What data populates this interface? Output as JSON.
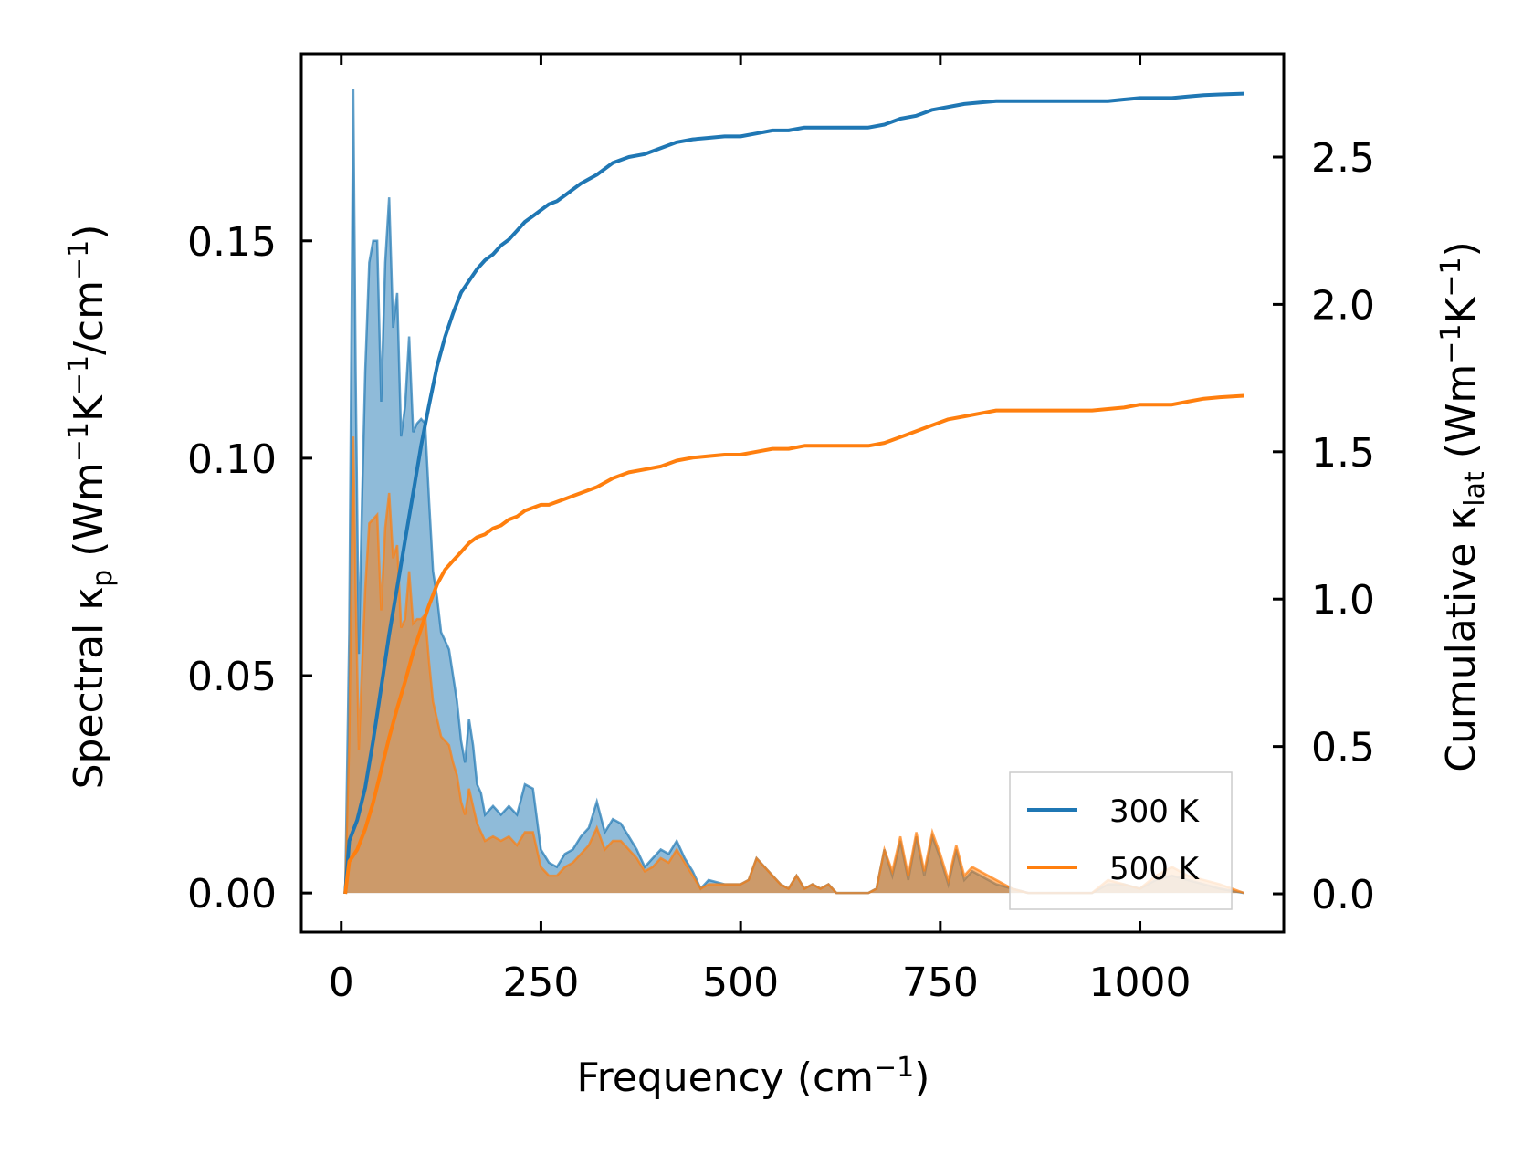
{
  "chart_data": {
    "type": "line",
    "x_axis": {
      "label_main": "Frequency (cm",
      "label_sup": "−1",
      "label_end": ")",
      "range": [
        -50,
        1180
      ],
      "ticks": [
        0,
        250,
        500,
        750,
        1000
      ],
      "tick_labels": [
        "0",
        "250",
        "500",
        "750",
        "1000"
      ]
    },
    "y_left": {
      "label_part1": "Spectral κ",
      "label_sub": "p",
      "label_part2": " (Wm",
      "label_sup1": "−1",
      "label_part3": "K",
      "label_sup2": "−1",
      "label_part4": "/cm",
      "label_sup3": "−1",
      "label_part5": ")",
      "range": [
        -0.009,
        0.193
      ],
      "ticks": [
        0.0,
        0.05,
        0.1,
        0.15
      ],
      "tick_labels": [
        "0.00",
        "0.05",
        "0.10",
        "0.15"
      ]
    },
    "y_right": {
      "label_part1": "Cumulative κ",
      "label_sub": "lat",
      "label_part2": " (Wm",
      "label_sup1": "−1",
      "label_part3": "K",
      "label_sup2": "−1",
      "label_part4": ")",
      "range": [
        -0.13,
        2.85
      ],
      "ticks": [
        0.0,
        0.5,
        1.0,
        1.5,
        2.0,
        2.5
      ],
      "tick_labels": [
        "0.0",
        "0.5",
        "1.0",
        "1.5",
        "2.0",
        "2.5"
      ]
    },
    "legend": {
      "position": "lower-right",
      "entries": [
        {
          "label": "300 K",
          "color": "#1f77b4"
        },
        {
          "label": "500 K",
          "color": "#ff7f0e"
        }
      ]
    },
    "series": [
      {
        "name": "300 K",
        "color": "#1f77b4",
        "spectral": {
          "x": [
            5,
            10,
            15,
            18,
            22,
            26,
            30,
            35,
            40,
            45,
            50,
            55,
            60,
            65,
            70,
            75,
            80,
            85,
            90,
            95,
            100,
            105,
            110,
            115,
            120,
            125,
            130,
            135,
            140,
            145,
            150,
            155,
            160,
            165,
            170,
            175,
            180,
            190,
            200,
            210,
            220,
            230,
            240,
            250,
            260,
            270,
            280,
            290,
            300,
            310,
            320,
            330,
            340,
            350,
            360,
            370,
            380,
            390,
            400,
            410,
            420,
            430,
            440,
            450,
            460,
            480,
            500,
            510,
            520,
            530,
            540,
            550,
            560,
            570,
            580,
            590,
            600,
            610,
            620,
            640,
            660,
            670,
            680,
            690,
            700,
            710,
            720,
            730,
            740,
            750,
            760,
            770,
            780,
            790,
            800,
            810,
            820,
            840,
            860,
            900,
            940,
            960,
            980,
            1000,
            1020,
            1040,
            1060,
            1080,
            1100,
            1130
          ],
          "values": [
            0.0,
            0.06,
            0.185,
            0.12,
            0.055,
            0.09,
            0.12,
            0.145,
            0.15,
            0.15,
            0.113,
            0.145,
            0.16,
            0.13,
            0.138,
            0.105,
            0.112,
            0.128,
            0.106,
            0.108,
            0.109,
            0.108,
            0.09,
            0.074,
            0.068,
            0.06,
            0.058,
            0.056,
            0.05,
            0.044,
            0.035,
            0.03,
            0.04,
            0.034,
            0.025,
            0.023,
            0.018,
            0.02,
            0.018,
            0.02,
            0.018,
            0.025,
            0.024,
            0.01,
            0.007,
            0.006,
            0.009,
            0.01,
            0.013,
            0.015,
            0.021,
            0.014,
            0.017,
            0.016,
            0.013,
            0.01,
            0.006,
            0.008,
            0.01,
            0.009,
            0.012,
            0.008,
            0.005,
            0.001,
            0.003,
            0.002,
            0.002,
            0.003,
            0.008,
            0.006,
            0.004,
            0.002,
            0.001,
            0.004,
            0.001,
            0.002,
            0.001,
            0.002,
            0.0,
            0.0,
            0.0,
            0.001,
            0.01,
            0.004,
            0.012,
            0.003,
            0.013,
            0.004,
            0.013,
            0.008,
            0.002,
            0.01,
            0.003,
            0.005,
            0.004,
            0.003,
            0.002,
            0.001,
            0.0,
            0.0,
            0.0,
            0.002,
            0.002,
            0.001,
            0.003,
            0.004,
            0.003,
            0.002,
            0.001,
            0.0
          ]
        },
        "cumulative": {
          "x": [
            5,
            10,
            20,
            30,
            40,
            50,
            60,
            70,
            80,
            90,
            100,
            110,
            120,
            130,
            140,
            150,
            160,
            170,
            180,
            190,
            200,
            210,
            220,
            230,
            240,
            250,
            260,
            270,
            280,
            290,
            300,
            320,
            340,
            360,
            380,
            400,
            420,
            440,
            460,
            480,
            500,
            520,
            540,
            560,
            580,
            600,
            620,
            640,
            660,
            680,
            700,
            720,
            740,
            760,
            780,
            800,
            820,
            840,
            860,
            880,
            900,
            920,
            940,
            960,
            980,
            1000,
            1020,
            1040,
            1060,
            1080,
            1100,
            1130
          ],
          "values": [
            0.0,
            0.18,
            0.25,
            0.36,
            0.52,
            0.7,
            0.88,
            1.04,
            1.2,
            1.36,
            1.52,
            1.66,
            1.79,
            1.89,
            1.97,
            2.04,
            2.08,
            2.12,
            2.15,
            2.17,
            2.2,
            2.22,
            2.25,
            2.28,
            2.3,
            2.32,
            2.34,
            2.35,
            2.37,
            2.39,
            2.41,
            2.44,
            2.48,
            2.5,
            2.51,
            2.53,
            2.55,
            2.56,
            2.565,
            2.57,
            2.57,
            2.58,
            2.59,
            2.59,
            2.6,
            2.6,
            2.6,
            2.6,
            2.6,
            2.61,
            2.63,
            2.64,
            2.66,
            2.67,
            2.68,
            2.685,
            2.69,
            2.69,
            2.69,
            2.69,
            2.69,
            2.69,
            2.69,
            2.69,
            2.695,
            2.7,
            2.7,
            2.7,
            2.705,
            2.71,
            2.712,
            2.715
          ]
        }
      },
      {
        "name": "500 K",
        "color": "#ff7f0e",
        "spectral": {
          "x": [
            5,
            10,
            15,
            18,
            22,
            26,
            30,
            35,
            40,
            45,
            50,
            55,
            60,
            65,
            70,
            75,
            80,
            85,
            90,
            95,
            100,
            105,
            110,
            115,
            120,
            125,
            130,
            135,
            140,
            145,
            150,
            155,
            160,
            165,
            170,
            175,
            180,
            190,
            200,
            210,
            220,
            230,
            240,
            250,
            260,
            270,
            280,
            290,
            300,
            310,
            320,
            330,
            340,
            350,
            360,
            370,
            380,
            390,
            400,
            410,
            420,
            430,
            440,
            450,
            460,
            480,
            500,
            510,
            520,
            530,
            540,
            550,
            560,
            570,
            580,
            590,
            600,
            610,
            620,
            640,
            660,
            670,
            680,
            690,
            700,
            710,
            720,
            730,
            740,
            750,
            760,
            770,
            780,
            790,
            800,
            810,
            820,
            840,
            860,
            900,
            940,
            960,
            980,
            1000,
            1020,
            1040,
            1060,
            1080,
            1100,
            1130
          ],
          "values": [
            0.0,
            0.035,
            0.105,
            0.07,
            0.033,
            0.052,
            0.07,
            0.085,
            0.086,
            0.087,
            0.065,
            0.084,
            0.092,
            0.077,
            0.08,
            0.061,
            0.063,
            0.074,
            0.062,
            0.063,
            0.063,
            0.064,
            0.053,
            0.044,
            0.04,
            0.036,
            0.035,
            0.034,
            0.03,
            0.027,
            0.021,
            0.018,
            0.024,
            0.02,
            0.016,
            0.014,
            0.012,
            0.013,
            0.012,
            0.013,
            0.011,
            0.014,
            0.014,
            0.006,
            0.004,
            0.004,
            0.006,
            0.007,
            0.009,
            0.011,
            0.015,
            0.01,
            0.012,
            0.012,
            0.01,
            0.008,
            0.005,
            0.006,
            0.008,
            0.007,
            0.01,
            0.007,
            0.004,
            0.001,
            0.002,
            0.002,
            0.002,
            0.003,
            0.008,
            0.006,
            0.004,
            0.002,
            0.001,
            0.004,
            0.001,
            0.002,
            0.001,
            0.002,
            0.0,
            0.0,
            0.0,
            0.001,
            0.01,
            0.005,
            0.013,
            0.004,
            0.014,
            0.005,
            0.014,
            0.009,
            0.003,
            0.011,
            0.004,
            0.006,
            0.005,
            0.004,
            0.003,
            0.001,
            0.0,
            0.0,
            0.0,
            0.003,
            0.002,
            0.001,
            0.004,
            0.006,
            0.004,
            0.003,
            0.002,
            0.0
          ]
        },
        "cumulative": {
          "x": [
            5,
            10,
            20,
            30,
            40,
            50,
            60,
            70,
            80,
            90,
            100,
            110,
            120,
            130,
            140,
            150,
            160,
            170,
            180,
            190,
            200,
            210,
            220,
            230,
            240,
            250,
            260,
            270,
            280,
            290,
            300,
            320,
            340,
            360,
            380,
            400,
            420,
            440,
            460,
            480,
            500,
            520,
            540,
            560,
            580,
            600,
            620,
            640,
            660,
            680,
            700,
            720,
            740,
            760,
            780,
            800,
            820,
            840,
            860,
            880,
            900,
            920,
            940,
            960,
            980,
            1000,
            1020,
            1040,
            1060,
            1080,
            1100,
            1130
          ],
          "values": [
            0.0,
            0.11,
            0.15,
            0.22,
            0.31,
            0.42,
            0.53,
            0.63,
            0.72,
            0.82,
            0.9,
            0.98,
            1.05,
            1.1,
            1.13,
            1.16,
            1.19,
            1.21,
            1.22,
            1.24,
            1.25,
            1.27,
            1.28,
            1.3,
            1.31,
            1.32,
            1.32,
            1.33,
            1.34,
            1.35,
            1.36,
            1.38,
            1.41,
            1.43,
            1.44,
            1.45,
            1.47,
            1.48,
            1.485,
            1.49,
            1.49,
            1.5,
            1.51,
            1.51,
            1.52,
            1.52,
            1.52,
            1.52,
            1.52,
            1.53,
            1.55,
            1.57,
            1.59,
            1.61,
            1.62,
            1.63,
            1.64,
            1.64,
            1.64,
            1.64,
            1.64,
            1.64,
            1.64,
            1.645,
            1.65,
            1.66,
            1.66,
            1.66,
            1.67,
            1.68,
            1.685,
            1.69
          ]
        }
      }
    ]
  }
}
